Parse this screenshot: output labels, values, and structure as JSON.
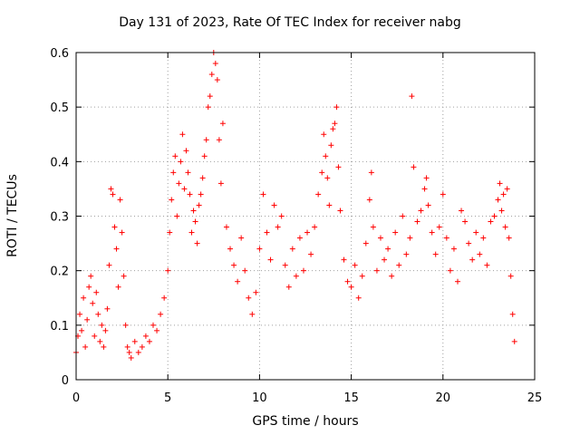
{
  "chart_data": {
    "type": "scatter",
    "title": "Day 131 of 2023, Rate Of TEC Index for receiver nabg",
    "xlabel": "GPS time / hours",
    "ylabel": "ROTI / TECUs",
    "xlim": [
      0,
      25
    ],
    "ylim": [
      0,
      0.6
    ],
    "xticks": [
      "0",
      "5",
      "10",
      "15",
      "20",
      "25"
    ],
    "yticks": [
      "0",
      "0.1",
      "0.2",
      "0.3",
      "0.4",
      "0.5",
      "0.6"
    ],
    "grid": true,
    "marker": "+",
    "color": "#ff0000",
    "series": [
      {
        "points": [
          [
            0.0,
            0.05
          ],
          [
            0.1,
            0.08
          ],
          [
            0.2,
            0.12
          ],
          [
            0.3,
            0.09
          ],
          [
            0.4,
            0.15
          ],
          [
            0.5,
            0.06
          ],
          [
            0.6,
            0.11
          ],
          [
            0.7,
            0.17
          ],
          [
            0.8,
            0.19
          ],
          [
            0.9,
            0.14
          ],
          [
            1.0,
            0.08
          ],
          [
            1.1,
            0.16
          ],
          [
            1.2,
            0.12
          ],
          [
            1.3,
            0.07
          ],
          [
            1.4,
            0.1
          ],
          [
            1.5,
            0.06
          ],
          [
            1.6,
            0.09
          ],
          [
            1.7,
            0.13
          ],
          [
            1.8,
            0.21
          ],
          [
            1.9,
            0.35
          ],
          [
            2.0,
            0.34
          ],
          [
            2.1,
            0.28
          ],
          [
            2.2,
            0.24
          ],
          [
            2.3,
            0.17
          ],
          [
            2.4,
            0.33
          ],
          [
            2.5,
            0.27
          ],
          [
            2.6,
            0.19
          ],
          [
            2.7,
            0.1
          ],
          [
            2.8,
            0.06
          ],
          [
            2.9,
            0.05
          ],
          [
            3.0,
            0.04
          ],
          [
            3.2,
            0.07
          ],
          [
            3.4,
            0.05
          ],
          [
            3.6,
            0.06
          ],
          [
            3.8,
            0.08
          ],
          [
            4.0,
            0.07
          ],
          [
            4.2,
            0.1
          ],
          [
            4.4,
            0.09
          ],
          [
            4.6,
            0.12
          ],
          [
            4.8,
            0.15
          ],
          [
            5.0,
            0.2
          ],
          [
            5.1,
            0.27
          ],
          [
            5.2,
            0.33
          ],
          [
            5.3,
            0.38
          ],
          [
            5.4,
            0.41
          ],
          [
            5.5,
            0.3
          ],
          [
            5.6,
            0.36
          ],
          [
            5.7,
            0.4
          ],
          [
            5.8,
            0.45
          ],
          [
            5.9,
            0.35
          ],
          [
            6.0,
            0.42
          ],
          [
            6.1,
            0.38
          ],
          [
            6.2,
            0.34
          ],
          [
            6.3,
            0.27
          ],
          [
            6.4,
            0.31
          ],
          [
            6.5,
            0.29
          ],
          [
            6.6,
            0.25
          ],
          [
            6.7,
            0.32
          ],
          [
            6.8,
            0.34
          ],
          [
            6.9,
            0.37
          ],
          [
            7.0,
            0.41
          ],
          [
            7.1,
            0.44
          ],
          [
            7.2,
            0.5
          ],
          [
            7.3,
            0.52
          ],
          [
            7.4,
            0.56
          ],
          [
            7.5,
            0.6
          ],
          [
            7.6,
            0.58
          ],
          [
            7.7,
            0.55
          ],
          [
            7.8,
            0.44
          ],
          [
            7.9,
            0.36
          ],
          [
            8.0,
            0.47
          ],
          [
            8.2,
            0.28
          ],
          [
            8.4,
            0.24
          ],
          [
            8.6,
            0.21
          ],
          [
            8.8,
            0.18
          ],
          [
            9.0,
            0.26
          ],
          [
            9.2,
            0.2
          ],
          [
            9.4,
            0.15
          ],
          [
            9.6,
            0.12
          ],
          [
            9.8,
            0.16
          ],
          [
            10.0,
            0.24
          ],
          [
            10.2,
            0.34
          ],
          [
            10.4,
            0.27
          ],
          [
            10.6,
            0.22
          ],
          [
            10.8,
            0.32
          ],
          [
            11.0,
            0.28
          ],
          [
            11.2,
            0.3
          ],
          [
            11.4,
            0.21
          ],
          [
            11.6,
            0.17
          ],
          [
            11.8,
            0.24
          ],
          [
            12.0,
            0.19
          ],
          [
            12.2,
            0.26
          ],
          [
            12.4,
            0.2
          ],
          [
            12.6,
            0.27
          ],
          [
            12.8,
            0.23
          ],
          [
            13.0,
            0.28
          ],
          [
            13.2,
            0.34
          ],
          [
            13.4,
            0.38
          ],
          [
            13.5,
            0.45
          ],
          [
            13.6,
            0.41
          ],
          [
            13.7,
            0.37
          ],
          [
            13.8,
            0.32
          ],
          [
            13.9,
            0.43
          ],
          [
            14.0,
            0.46
          ],
          [
            14.1,
            0.47
          ],
          [
            14.2,
            0.5
          ],
          [
            14.3,
            0.39
          ],
          [
            14.4,
            0.31
          ],
          [
            14.6,
            0.22
          ],
          [
            14.8,
            0.18
          ],
          [
            15.0,
            0.17
          ],
          [
            15.2,
            0.21
          ],
          [
            15.4,
            0.15
          ],
          [
            15.6,
            0.19
          ],
          [
            15.8,
            0.25
          ],
          [
            16.0,
            0.33
          ],
          [
            16.1,
            0.38
          ],
          [
            16.2,
            0.28
          ],
          [
            16.4,
            0.2
          ],
          [
            16.6,
            0.26
          ],
          [
            16.8,
            0.22
          ],
          [
            17.0,
            0.24
          ],
          [
            17.2,
            0.19
          ],
          [
            17.4,
            0.27
          ],
          [
            17.6,
            0.21
          ],
          [
            17.8,
            0.3
          ],
          [
            18.0,
            0.23
          ],
          [
            18.2,
            0.26
          ],
          [
            18.3,
            0.52
          ],
          [
            18.4,
            0.39
          ],
          [
            18.6,
            0.29
          ],
          [
            18.8,
            0.31
          ],
          [
            19.0,
            0.35
          ],
          [
            19.1,
            0.37
          ],
          [
            19.2,
            0.32
          ],
          [
            19.4,
            0.27
          ],
          [
            19.6,
            0.23
          ],
          [
            19.8,
            0.28
          ],
          [
            20.0,
            0.34
          ],
          [
            20.2,
            0.26
          ],
          [
            20.4,
            0.2
          ],
          [
            20.6,
            0.24
          ],
          [
            20.8,
            0.18
          ],
          [
            21.0,
            0.31
          ],
          [
            21.2,
            0.29
          ],
          [
            21.4,
            0.25
          ],
          [
            21.6,
            0.22
          ],
          [
            21.8,
            0.27
          ],
          [
            22.0,
            0.23
          ],
          [
            22.2,
            0.26
          ],
          [
            22.4,
            0.21
          ],
          [
            22.6,
            0.29
          ],
          [
            22.8,
            0.3
          ],
          [
            23.0,
            0.33
          ],
          [
            23.1,
            0.36
          ],
          [
            23.2,
            0.31
          ],
          [
            23.3,
            0.34
          ],
          [
            23.4,
            0.28
          ],
          [
            23.5,
            0.35
          ],
          [
            23.6,
            0.26
          ],
          [
            23.7,
            0.19
          ],
          [
            23.8,
            0.12
          ],
          [
            23.9,
            0.07
          ]
        ]
      }
    ]
  }
}
